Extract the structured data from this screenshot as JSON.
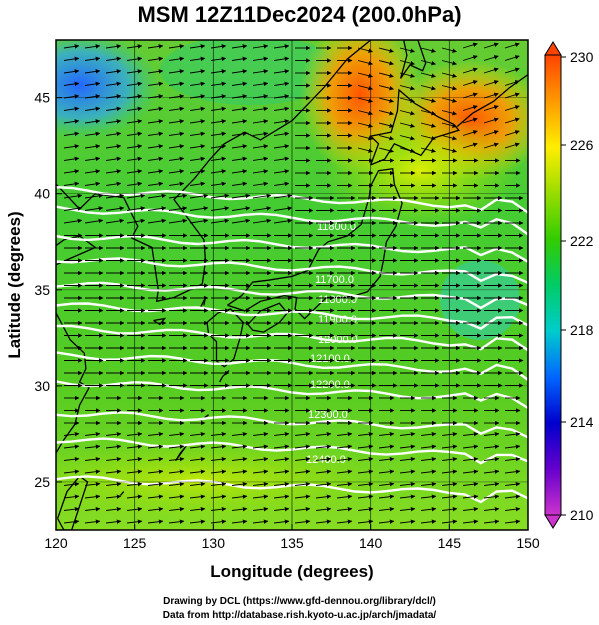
{
  "title": "MSM 12Z11Dec2024 (200.0hPa)",
  "axes": {
    "xlabel": "Longitude (degrees)",
    "ylabel": "Latitude  (degrees)",
    "xticks": [
      "120",
      "125",
      "130",
      "135",
      "140",
      "145",
      "150"
    ],
    "yticks": [
      "25",
      "30",
      "35",
      "40",
      "45"
    ]
  },
  "colorbar": {
    "labels": [
      "230",
      "226",
      "222",
      "218",
      "214",
      "210"
    ],
    "min": 210,
    "max": 230,
    "colors": [
      "#cc33cc",
      "#6600cc",
      "#0000cc",
      "#0066ff",
      "#00cccc",
      "#00cc66",
      "#33cc00",
      "#99dd00",
      "#ffee00",
      "#ff9900",
      "#ff4400"
    ]
  },
  "contours": {
    "labels": [
      "11800.0",
      "11700.0",
      "11800.0",
      "11900.0",
      "12000.0",
      "12100.0",
      "12200.0",
      "12300.0",
      "12400.0"
    ],
    "color": "#ffffff"
  },
  "credits": {
    "line1": "Drawing by DCL (https://www.gfd-dennou.org/library/dcl/)",
    "line2": "Data from http://database.rish.kyoto-u.ac.jp/arch/jmadata/"
  }
}
